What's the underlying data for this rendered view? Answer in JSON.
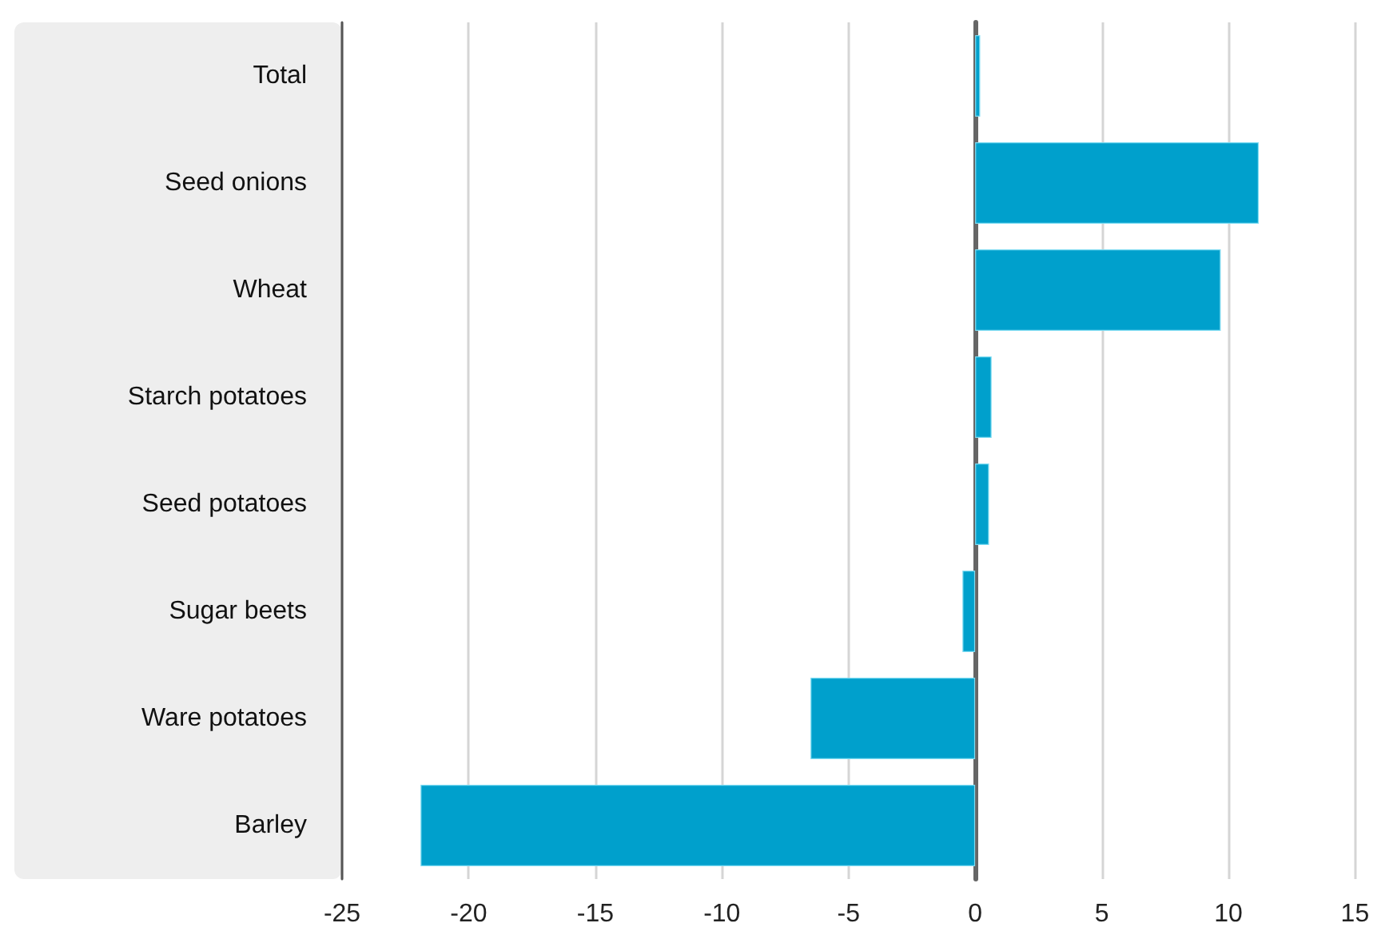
{
  "chart_data": {
    "type": "bar",
    "orientation": "horizontal",
    "categories": [
      "Total",
      "Seed onions",
      "Wheat",
      "Starch potatoes",
      "Seed potatoes",
      "Sugar beets",
      "Ware potatoes",
      "Barley"
    ],
    "values": [
      0.2,
      11.2,
      9.7,
      0.65,
      0.55,
      -0.5,
      -6.5,
      -21.9
    ],
    "color": "#00a0cc",
    "xlim": [
      -25,
      15
    ],
    "xticks": [
      -25,
      -20,
      -15,
      -10,
      -5,
      0,
      5,
      10,
      15
    ],
    "grid": "x"
  }
}
